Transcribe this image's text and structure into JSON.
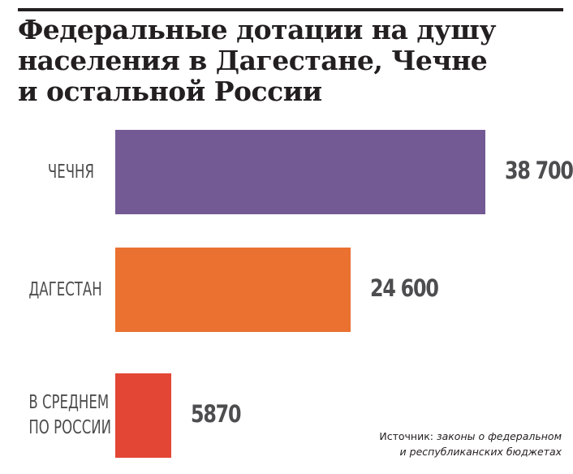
{
  "header": {
    "title_lines": [
      "Федеральные дотации на душу",
      "населения в Дагестане, Чечне",
      "и остальной России"
    ]
  },
  "chart_data": {
    "type": "bar",
    "orientation": "horizontal",
    "title": "Федеральные дотации на душу населения в Дагестане, Чечне и остальной России",
    "categories": [
      "ЧЕЧНЯ",
      "ДАГЕСТАН",
      "В СРЕДНЕМ ПО РОССИИ"
    ],
    "category_lines": [
      [
        "ЧЕЧНЯ"
      ],
      [
        "ДАГЕСТАН"
      ],
      [
        "В СРЕДНЕМ",
        "ПО РОССИИ"
      ]
    ],
    "values": [
      38700,
      24600,
      5870
    ],
    "value_labels": [
      "38 700",
      "24 600",
      "5870"
    ],
    "colors": [
      "#745a95",
      "#ea7130",
      "#e34635"
    ],
    "xlim": [
      0,
      38700
    ],
    "grid": false,
    "legend": "none"
  },
  "footer": {
    "source_lead": "Источник:",
    "source_line1": " законы о федеральном",
    "source_line2": "и республиканских бюджетах"
  }
}
